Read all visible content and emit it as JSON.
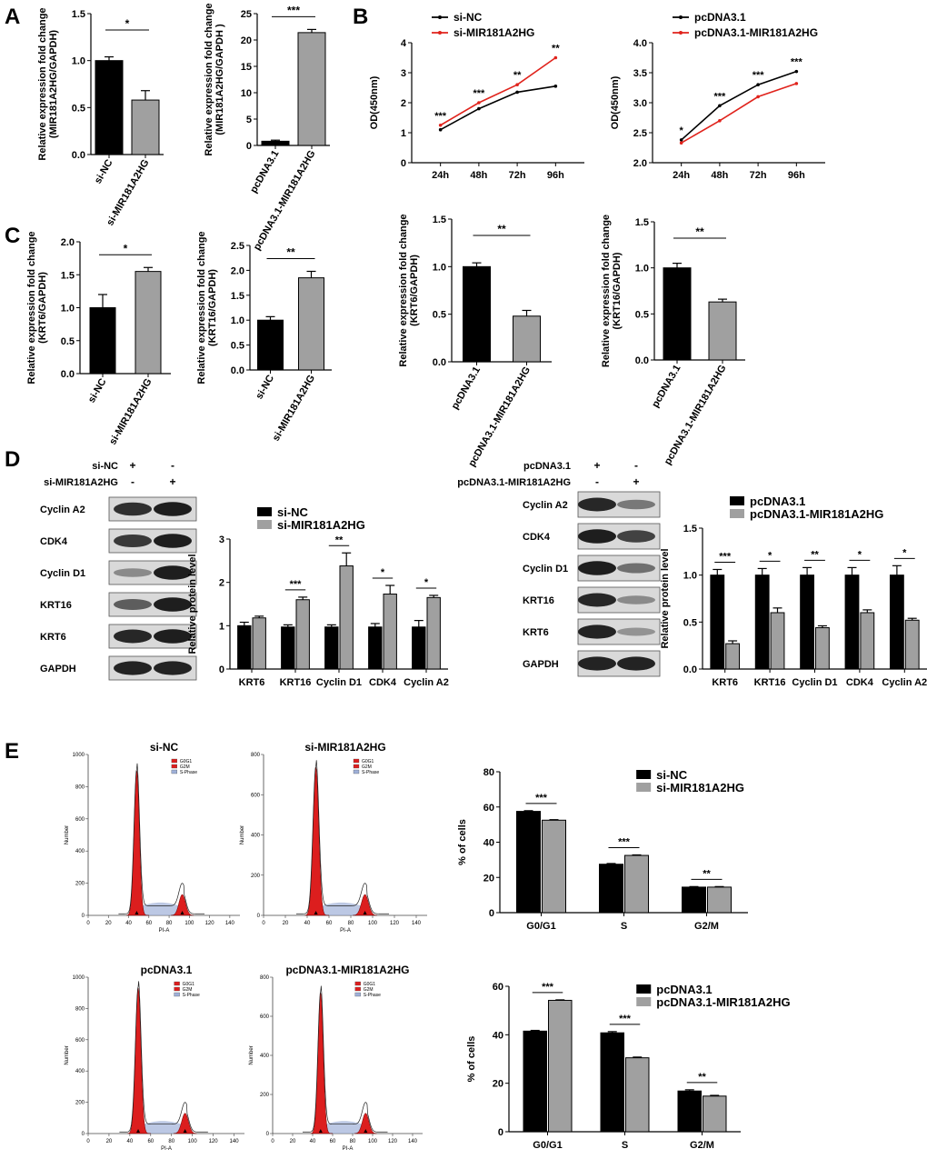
{
  "panel_labels": {
    "A": "A",
    "B": "B",
    "C": "C",
    "D": "D",
    "E": "E"
  },
  "colors": {
    "black": "#000000",
    "gray": "#a0a0a0",
    "red": "#e0231c",
    "flow_fill": "#dc1e1e",
    "sphase": "#9fb0d8"
  },
  "stars": {
    "s1": "*",
    "s2": "**",
    "s3": "***"
  },
  "chart_data": [
    {
      "id": "A1",
      "type": "bar",
      "ylabel": "Relative expression fold change\n(MIR181A2HG/GAPDH)",
      "categories": [
        "si-NC",
        "si-MIR181A2HG"
      ],
      "values": [
        1.0,
        0.58
      ],
      "errors": [
        0.04,
        0.1
      ],
      "ylim": [
        0,
        1.5
      ],
      "yticks": [
        0.0,
        0.5,
        1.0,
        1.5
      ],
      "ytick_labels": [
        "0.0",
        "0.5",
        "1.0",
        "1.5"
      ],
      "sig": [
        "*"
      ]
    },
    {
      "id": "A2",
      "type": "bar",
      "ylabel": "Relative expression fold change\n(MIR181A2HG/GAPDH )",
      "categories": [
        "pcDNA3.1",
        "pcDNA3.1-MIR181A2HG"
      ],
      "values": [
        0.8,
        21.4
      ],
      "errors": [
        0.2,
        0.6
      ],
      "ylim": [
        0,
        25
      ],
      "yticks": [
        0,
        5,
        10,
        15,
        20,
        25
      ],
      "ytick_labels": [
        "0",
        "5",
        "10",
        "15",
        "20",
        "25"
      ],
      "sig": [
        "***"
      ]
    },
    {
      "id": "B1",
      "type": "line",
      "ylabel": "OD(450nm)",
      "x": [
        "24h",
        "48h",
        "72h",
        "96h"
      ],
      "series": [
        {
          "name": "si-NC",
          "values": [
            1.1,
            1.8,
            2.35,
            2.55
          ]
        },
        {
          "name": "si-MIR181A2HG",
          "values": [
            1.25,
            2.0,
            2.6,
            3.5
          ]
        }
      ],
      "ylim": [
        0,
        4
      ],
      "yticks": [
        0,
        1,
        2,
        3,
        4
      ],
      "ytick_labels": [
        "0",
        "1",
        "2",
        "3",
        "4"
      ],
      "sig": [
        "***",
        "***",
        "**",
        "**"
      ],
      "legend": "top-left"
    },
    {
      "id": "B2",
      "type": "line",
      "ylabel": "OD(450nm)",
      "x": [
        "24h",
        "48h",
        "72h",
        "96h"
      ],
      "series": [
        {
          "name": "pcDNA3.1",
          "values": [
            2.38,
            2.95,
            3.3,
            3.52
          ]
        },
        {
          "name": "pcDNA3.1-MIR181A2HG",
          "values": [
            2.33,
            2.7,
            3.1,
            3.32
          ]
        }
      ],
      "ylim": [
        2.0,
        4.0
      ],
      "yticks": [
        2.0,
        2.5,
        3.0,
        3.5,
        4.0
      ],
      "ytick_labels": [
        "2.0",
        "2.5",
        "3.0",
        "3.5",
        "4.0"
      ],
      "sig": [
        "*",
        "***",
        "***",
        "***"
      ],
      "legend": "top-left"
    },
    {
      "id": "C1",
      "type": "bar",
      "ylabel": "Relative expression fold change\n(KRT6/GAPDH)",
      "categories": [
        "si-NC",
        "si-MIR181A2HG"
      ],
      "values": [
        1.0,
        1.55
      ],
      "errors": [
        0.2,
        0.06
      ],
      "ylim": [
        0,
        2.0
      ],
      "yticks": [
        0.0,
        0.5,
        1.0,
        1.5,
        2.0
      ],
      "ytick_labels": [
        "0.0",
        "0.5",
        "1.0",
        "1.5",
        "2.0"
      ],
      "sig": [
        "*"
      ]
    },
    {
      "id": "C2",
      "type": "bar",
      "ylabel": "Relative expression fold change\n(KRT16/GAPDH)",
      "categories": [
        "si-NC",
        "si-MIR181A2HG"
      ],
      "values": [
        1.0,
        1.85
      ],
      "errors": [
        0.07,
        0.13
      ],
      "ylim": [
        0,
        2.5
      ],
      "yticks": [
        0.0,
        0.5,
        1.0,
        1.5,
        2.0,
        2.5
      ],
      "ytick_labels": [
        "0.0",
        "0.5",
        "1.0",
        "1.5",
        "2.0",
        "2.5"
      ],
      "sig": [
        "**"
      ]
    },
    {
      "id": "C3",
      "type": "bar",
      "ylabel": "Relative expression fold change\n(KRT6/GAPDH)",
      "categories": [
        "pcDNA3.1",
        "pcDNA3.1-MIR181A2HG"
      ],
      "values": [
        1.0,
        0.48
      ],
      "errors": [
        0.04,
        0.06
      ],
      "ylim": [
        0,
        1.5
      ],
      "yticks": [
        0.0,
        0.5,
        1.0,
        1.5
      ],
      "ytick_labels": [
        "0.0",
        "0.5",
        "1.0",
        "1.5"
      ],
      "sig": [
        "**"
      ]
    },
    {
      "id": "C4",
      "type": "bar",
      "ylabel": "Relative expression fold change\n(KRT16/GAPDH)",
      "categories": [
        "pcDNA3.1",
        "pcDNA3.1-MIR181A2HG"
      ],
      "values": [
        1.0,
        0.63
      ],
      "errors": [
        0.05,
        0.03
      ],
      "ylim": [
        0,
        1.5
      ],
      "yticks": [
        0.0,
        0.5,
        1.0,
        1.5
      ],
      "ytick_labels": [
        "0.0",
        "0.5",
        "1.0",
        "1.5"
      ],
      "sig": [
        "**"
      ]
    },
    {
      "id": "D1",
      "type": "bar",
      "ylabel": "Relative protein level",
      "categories": [
        "KRT6",
        "KRT16",
        "Cyclin D1",
        "CDK4",
        "Cyclin A2"
      ],
      "series": [
        {
          "name": "si-NC",
          "values": [
            1.0,
            0.97,
            0.97,
            0.97,
            0.97
          ],
          "errors": [
            0.08,
            0.05,
            0.05,
            0.08,
            0.15
          ]
        },
        {
          "name": "si-MIR181A2HG",
          "values": [
            1.18,
            1.6,
            2.38,
            1.73,
            1.65
          ],
          "errors": [
            0.04,
            0.06,
            0.3,
            0.2,
            0.05
          ]
        }
      ],
      "ylim": [
        0,
        3
      ],
      "yticks": [
        0,
        1,
        2,
        3
      ],
      "ytick_labels": [
        "0",
        "1",
        "2",
        "3"
      ],
      "sig": [
        "",
        "***",
        "**",
        "*",
        "*"
      ],
      "legend": "top-left"
    },
    {
      "id": "D2",
      "type": "bar",
      "ylabel": "Relative protein level",
      "categories": [
        "KRT6",
        "KRT16",
        "Cyclin D1",
        "CDK4",
        "Cyclin A2"
      ],
      "series": [
        {
          "name": "pcDNA3.1",
          "values": [
            1.0,
            1.0,
            1.0,
            1.0,
            1.0
          ],
          "errors": [
            0.06,
            0.07,
            0.08,
            0.08,
            0.1
          ]
        },
        {
          "name": "pcDNA3.1-MIR181A2HG",
          "values": [
            0.27,
            0.6,
            0.44,
            0.6,
            0.52
          ],
          "errors": [
            0.03,
            0.05,
            0.02,
            0.03,
            0.02
          ]
        }
      ],
      "ylim": [
        0,
        1.5
      ],
      "yticks": [
        0.0,
        0.5,
        1.0,
        1.5
      ],
      "ytick_labels": [
        "0.0",
        "0.5",
        "1.0",
        "1.5"
      ],
      "sig": [
        "***",
        "*",
        "**",
        "*",
        "*"
      ],
      "legend": "top-left"
    },
    {
      "id": "E1",
      "type": "bar",
      "ylabel": "% of cells",
      "categories": [
        "G0/G1",
        "S",
        "G2/M"
      ],
      "series": [
        {
          "name": "si-NC",
          "values": [
            57.5,
            27.5,
            14.5
          ],
          "errors": [
            0.4,
            0.4,
            0.3
          ]
        },
        {
          "name": "si-MIR181A2HG",
          "values": [
            52.5,
            32.5,
            14.5
          ],
          "errors": [
            0.3,
            0.3,
            0.3
          ]
        }
      ],
      "ylim": [
        0,
        80
      ],
      "yticks": [
        0,
        20,
        40,
        60,
        80
      ],
      "ytick_labels": [
        "0",
        "20",
        "40",
        "60",
        "80"
      ],
      "sig": [
        "***",
        "***",
        "**"
      ],
      "legend": "top-right"
    },
    {
      "id": "E2",
      "type": "bar",
      "ylabel": "% of cells",
      "categories": [
        "G0/G1",
        "S",
        "G2/M"
      ],
      "series": [
        {
          "name": "pcDNA3.1",
          "values": [
            41.5,
            40.8,
            16.8
          ],
          "errors": [
            0.3,
            0.5,
            0.5
          ]
        },
        {
          "name": "pcDNA3.1-MIR181A2HG",
          "values": [
            54.2,
            30.5,
            14.7
          ],
          "errors": [
            0.2,
            0.3,
            0.3
          ]
        }
      ],
      "ylim": [
        0,
        60
      ],
      "yticks": [
        0,
        20,
        40,
        60
      ],
      "ytick_labels": [
        "0",
        "20",
        "40",
        "60"
      ],
      "sig": [
        "***",
        "***",
        "**"
      ],
      "legend": "top-right"
    }
  ],
  "blots": [
    {
      "id": "D-left",
      "conditions": [
        {
          "label": "si-NC",
          "marks": [
            "+",
            "-"
          ]
        },
        {
          "label": "si-MIR181A2HG",
          "marks": [
            "-",
            "+"
          ]
        }
      ],
      "rows": [
        {
          "label": "Cyclin A2",
          "intensity": [
            0.85,
            0.95
          ]
        },
        {
          "label": "CDK4",
          "intensity": [
            0.8,
            0.95
          ]
        },
        {
          "label": "Cyclin D1",
          "intensity": [
            0.35,
            0.95
          ]
        },
        {
          "label": "KRT16",
          "intensity": [
            0.6,
            0.95
          ]
        },
        {
          "label": "KRT6",
          "intensity": [
            0.9,
            0.95
          ]
        },
        {
          "label": "GAPDH",
          "intensity": [
            0.92,
            0.92
          ]
        }
      ]
    },
    {
      "id": "D-right",
      "conditions": [
        {
          "label": "pcDNA3.1",
          "marks": [
            "+",
            "-"
          ]
        },
        {
          "label": "pcDNA3.1-MIR181A2HG",
          "marks": [
            "-",
            "+"
          ]
        }
      ],
      "rows": [
        {
          "label": "Cyclin A2",
          "intensity": [
            0.9,
            0.45
          ]
        },
        {
          "label": "CDK4",
          "intensity": [
            0.95,
            0.75
          ]
        },
        {
          "label": "Cyclin D1",
          "intensity": [
            0.95,
            0.5
          ]
        },
        {
          "label": "KRT16",
          "intensity": [
            0.9,
            0.35
          ]
        },
        {
          "label": "KRT6",
          "intensity": [
            0.92,
            0.3
          ]
        },
        {
          "label": "GAPDH",
          "intensity": [
            0.92,
            0.92
          ]
        }
      ]
    }
  ],
  "flow": {
    "xlabel": "PI-A",
    "ylabel": "Number",
    "xticks": [
      "0",
      "20",
      "40",
      "60",
      "80",
      "100",
      "120",
      "140"
    ],
    "legend": [
      "G0G1",
      "G2M",
      "S-Phase"
    ],
    "panels": [
      {
        "title": "si-NC",
        "yticks": [
          "0",
          "200",
          "400",
          "600",
          "800",
          "1000"
        ],
        "peak": 0.9
      },
      {
        "title": "si-MIR181A2HG",
        "yticks": [
          "0",
          "200",
          "400",
          "600",
          "800"
        ],
        "peak": 0.92
      },
      {
        "title": "pcDNA3.1",
        "yticks": [
          "0",
          "200",
          "400",
          "600",
          "800",
          "1000"
        ],
        "peak": 0.93
      },
      {
        "title": "pcDNA3.1-MIR181A2HG",
        "yticks": [
          "0",
          "200",
          "400",
          "600",
          "800"
        ],
        "peak": 0.9
      }
    ]
  }
}
